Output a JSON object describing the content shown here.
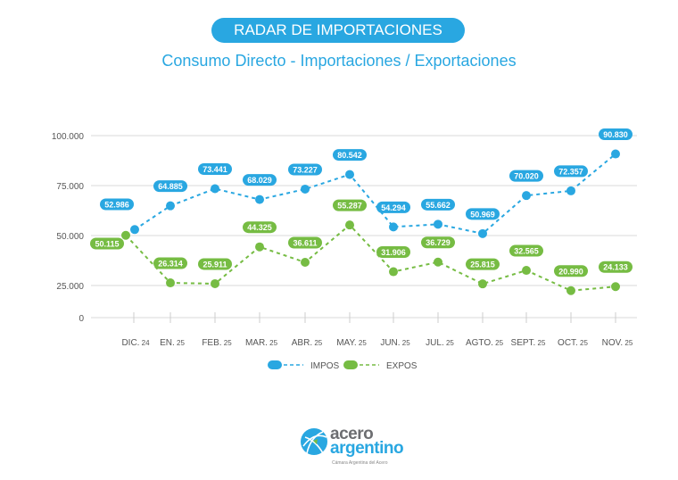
{
  "header": {
    "badge": "RADAR DE IMPORTACIONES",
    "subtitle": "Consumo Directo - Importaciones / Exportaciones"
  },
  "colors": {
    "impos": "#29a7e1",
    "expos": "#76bc43",
    "grid": "#d9d9d9",
    "text": "#555555"
  },
  "chart_data": {
    "type": "line",
    "title": "Consumo Directo - Importaciones / Exportaciones",
    "categories": [
      [
        "DIC.",
        "24"
      ],
      [
        "EN.",
        "25"
      ],
      [
        "FEB.",
        "25"
      ],
      [
        "MAR.",
        "25"
      ],
      [
        "ABR.",
        "25"
      ],
      [
        "MAY.",
        "25"
      ],
      [
        "JUN.",
        "25"
      ],
      [
        "JUL.",
        "25"
      ],
      [
        "AGTO.",
        "25"
      ],
      [
        "SEPT.",
        "25"
      ],
      [
        "OCT.",
        "25"
      ],
      [
        "NOV.",
        "25"
      ]
    ],
    "yticks": [
      {
        "value": 0,
        "label": "0"
      },
      {
        "value": 25000,
        "label": "25.000"
      },
      {
        "value": 50000,
        "label": "50.000"
      },
      {
        "value": 75000,
        "label": "75.000"
      },
      {
        "value": 100000,
        "label": "100.000"
      }
    ],
    "ylim": [
      0,
      100000
    ],
    "grid": true,
    "legend_position": "bottom",
    "series": [
      {
        "name": "IMPOS",
        "color": "#29a7e1",
        "values": [
          52986,
          64885,
          73441,
          68029,
          73227,
          80542,
          54294,
          55662,
          50969,
          70020,
          72357,
          90830
        ],
        "labels": [
          "52.986",
          "64.885",
          "73.441",
          "68.029",
          "73.227",
          "80.542",
          "54.294",
          "55.662",
          "50.969",
          "70.020",
          "72.357",
          "90.830"
        ]
      },
      {
        "name": "EXPOS",
        "color": "#76bc43",
        "values": [
          50115,
          26314,
          25911,
          44325,
          36611,
          55287,
          31906,
          36729,
          25815,
          32565,
          20990,
          24133
        ],
        "labels": [
          "50.115",
          "26.314",
          "25.911",
          "44.325",
          "36.611",
          "55.287",
          "31.906",
          "36.729",
          "25.815",
          "32.565",
          "20.990",
          "24.133"
        ]
      }
    ]
  },
  "logo": {
    "line1": "acero",
    "line2": "argentino",
    "tagline": "Cámara Argentina del Acero"
  }
}
